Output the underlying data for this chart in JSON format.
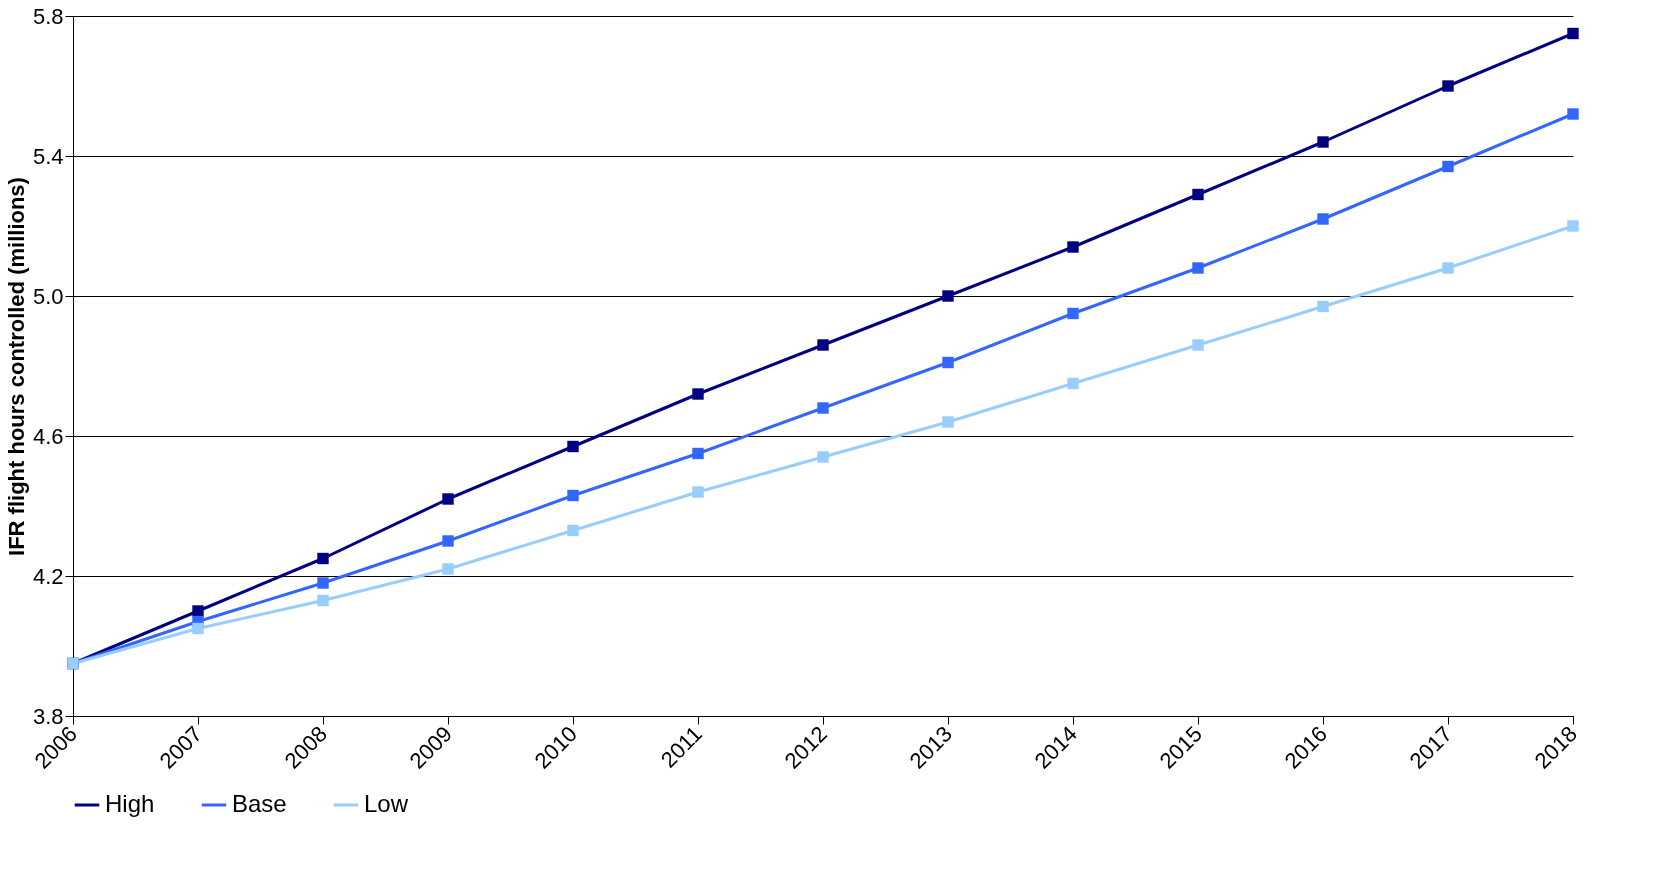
{
  "chart_data": {
    "type": "line",
    "ylabel": "IFR flight hours controlled (millions)",
    "x": [
      2006,
      2007,
      2008,
      2009,
      2010,
      2011,
      2012,
      2013,
      2014,
      2015,
      2016,
      2017,
      2018
    ],
    "series": [
      {
        "name": "High",
        "color": "#000080",
        "values": [
          3.95,
          4.1,
          4.25,
          4.42,
          4.57,
          4.72,
          4.86,
          5.0,
          5.14,
          5.29,
          5.44,
          5.6,
          5.75
        ]
      },
      {
        "name": "Base",
        "color": "#3366ff",
        "values": [
          3.95,
          4.07,
          4.18,
          4.3,
          4.43,
          4.55,
          4.68,
          4.81,
          4.95,
          5.08,
          5.22,
          5.37,
          5.52
        ]
      },
      {
        "name": "Low",
        "color": "#99ccff",
        "values": [
          3.95,
          4.05,
          4.13,
          4.22,
          4.33,
          4.44,
          4.54,
          4.64,
          4.75,
          4.86,
          4.97,
          5.08,
          5.2
        ]
      }
    ],
    "xlim": [
      2006,
      2018
    ],
    "xticks": [
      2006,
      2007,
      2008,
      2009,
      2010,
      2011,
      2012,
      2013,
      2014,
      2015,
      2016,
      2017,
      2018
    ],
    "ylim": [
      3.8,
      5.8
    ],
    "yticks": [
      3.8,
      4.2,
      4.6,
      {
        "value": 5,
        "label": "5.0"
      },
      5.4,
      5.8
    ],
    "grid": "y",
    "legend": "bottom",
    "marker": "square",
    "line_style": "solid"
  }
}
